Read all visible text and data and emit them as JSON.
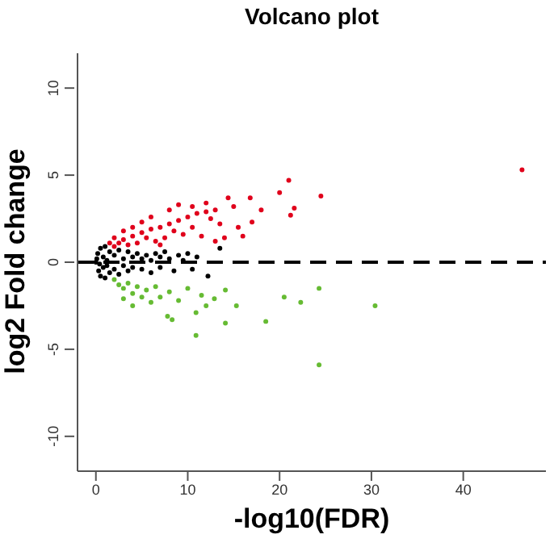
{
  "chart_data": {
    "type": "scatter",
    "title": "Volcano plot",
    "xlabel": "-log10(FDR)",
    "ylabel": "log2 Fold change",
    "xlim": [
      -2,
      49
    ],
    "ylim": [
      -12,
      12
    ],
    "xticks": [
      0,
      10,
      20,
      30,
      40
    ],
    "yticks": [
      -10,
      -5,
      0,
      5,
      10
    ],
    "grid": false,
    "legend": false,
    "marker": "circle",
    "ref_lines": [
      {
        "axis": "y",
        "value": 0,
        "color": "#000000",
        "line_style": "dashed"
      }
    ],
    "series": [
      {
        "color": "#000000",
        "x": [
          0,
          0.2,
          0.3,
          0.5,
          0.5,
          0.8,
          0.8,
          1,
          1,
          1.2,
          1.5,
          1.5,
          2,
          2,
          2.5,
          2.5,
          3,
          3,
          3.5,
          3.5,
          4,
          4,
          4.5,
          5,
          5,
          5.5,
          6,
          6,
          6.5,
          7,
          7,
          7.5,
          8,
          8.5,
          9,
          9.5,
          10,
          10.5,
          11,
          12.2,
          13.5,
          1.2,
          0.1,
          0.4
        ],
        "values": [
          0,
          0.5,
          -0.5,
          0.8,
          -0.8,
          0.3,
          -0.3,
          0.9,
          -0.9,
          0.1,
          0.6,
          -0.6,
          0.4,
          -0.4,
          0.7,
          -0.7,
          0.2,
          -0.2,
          0.6,
          -0.5,
          0.3,
          -0.3,
          0.5,
          0.2,
          -0.4,
          0.4,
          0.1,
          -0.6,
          0.5,
          0.3,
          -0.3,
          0.6,
          0.2,
          -0.5,
          0.4,
          0.1,
          0.5,
          -0.4,
          0.3,
          -0.8,
          0.8,
          -0.2,
          0.2,
          -0.1
        ]
      },
      {
        "color": "#e0001b",
        "x": [
          46.4,
          21,
          24.5,
          20,
          21.6,
          21.2,
          16.8,
          14.4,
          15,
          13,
          12,
          11,
          12.5,
          10,
          9,
          8,
          7,
          8.5,
          6,
          5,
          5.5,
          4,
          3,
          2.5,
          3.5,
          2,
          4.5,
          6.5,
          7.5,
          9.5,
          10.5,
          11.5,
          13.5,
          15.5,
          14,
          17,
          8,
          9,
          10.5,
          12,
          6,
          5,
          4,
          3,
          2,
          1.5,
          7,
          16,
          13,
          18
        ],
        "values": [
          5.3,
          4.7,
          3.8,
          4.0,
          3.1,
          2.7,
          3.7,
          3.7,
          3.2,
          3.0,
          2.9,
          2.8,
          2.5,
          2.6,
          2.4,
          2.2,
          2.0,
          1.8,
          1.9,
          1.7,
          1.4,
          1.5,
          1.3,
          1.1,
          1.0,
          0.9,
          1.1,
          1.2,
          1.4,
          1.6,
          2.0,
          1.5,
          2.2,
          2.0,
          1.4,
          2.3,
          3.0,
          3.3,
          3.2,
          3.4,
          2.6,
          2.3,
          2.0,
          1.8,
          1.4,
          1.1,
          1.0,
          1.5,
          1.2,
          3.0
        ]
      },
      {
        "color": "#66bb33",
        "x": [
          24.3,
          30.4,
          24.3,
          20.5,
          22.3,
          18.5,
          14.1,
          10.9,
          10.9,
          15.3,
          7.8,
          8.3,
          14.1,
          12.9,
          2,
          2.5,
          3,
          3.5,
          4,
          4.5,
          5,
          5.5,
          6,
          6.5,
          7,
          8,
          9,
          10,
          11.5,
          12,
          3,
          4
        ],
        "values": [
          -1.5,
          -2.5,
          -5.9,
          -2.0,
          -2.3,
          -3.4,
          -3.5,
          -4.2,
          -2.9,
          -2.5,
          -3.1,
          -3.3,
          -1.6,
          -2.1,
          -1.0,
          -1.3,
          -1.5,
          -1.2,
          -1.8,
          -1.4,
          -2.0,
          -1.6,
          -2.3,
          -1.4,
          -2.0,
          -1.7,
          -2.2,
          -1.5,
          -1.9,
          -2.5,
          -2.1,
          -2.5
        ]
      }
    ]
  }
}
